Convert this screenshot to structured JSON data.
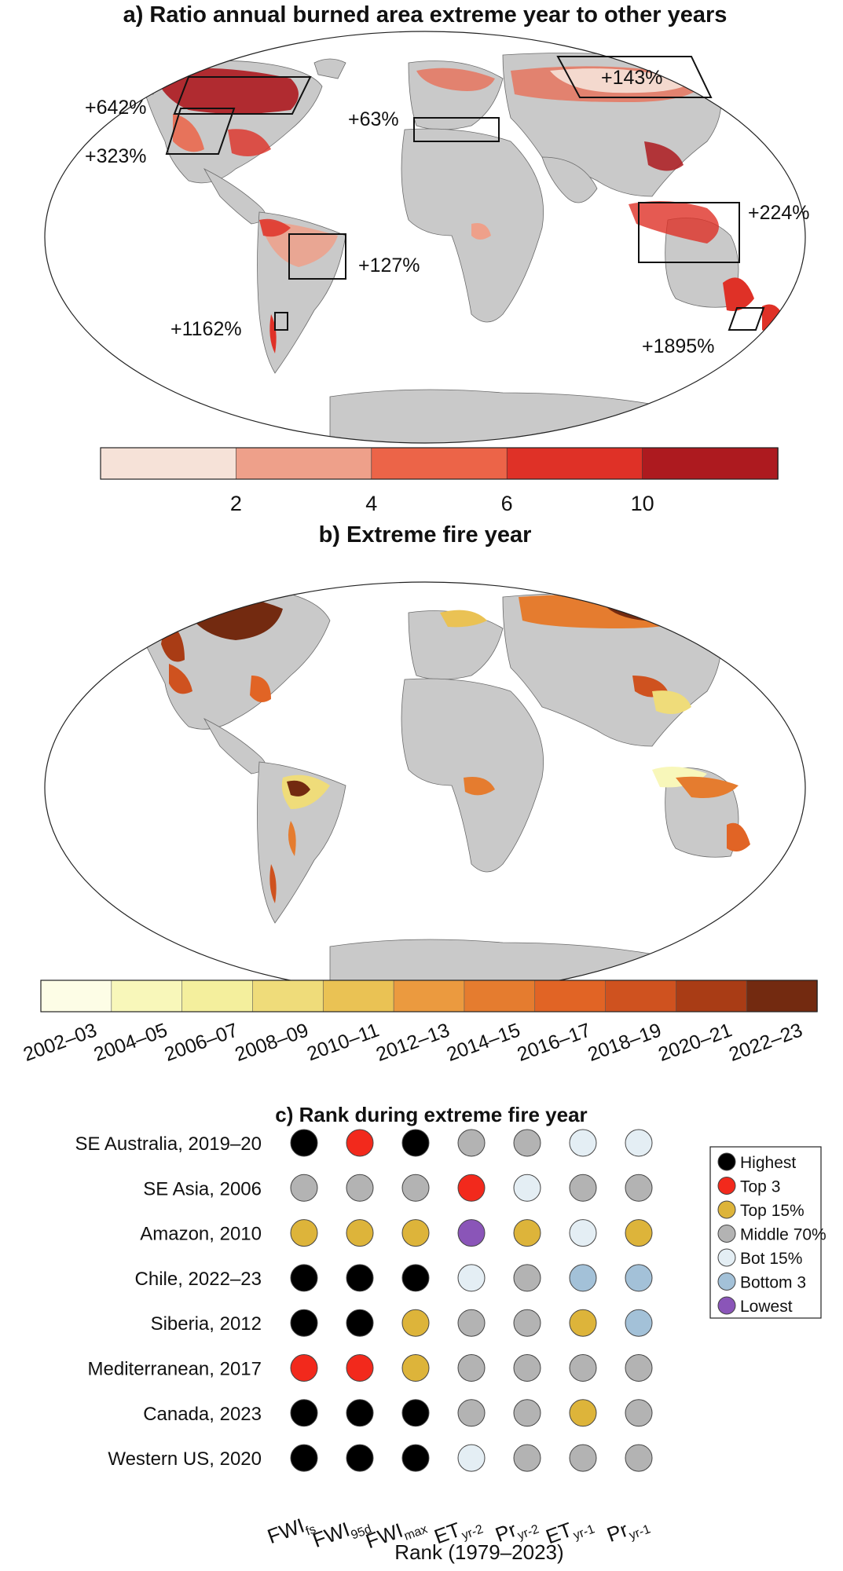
{
  "chart_data": [
    {
      "type": "heatmap",
      "title": "a) Ratio annual burned area extreme year to other years",
      "annotations": [
        "+642%",
        "+323%",
        "+63%",
        "+143%",
        "+224%",
        "+127%",
        "+1162%",
        "+1895%"
      ],
      "colorbar": {
        "ticks": [
          "2",
          "4",
          "6",
          "10"
        ],
        "colors": [
          "#f6e2d8",
          "#eea08a",
          "#ec6448",
          "#df3127",
          "#ad1a1f"
        ]
      }
    },
    {
      "type": "heatmap",
      "title": "b) Extreme fire year",
      "colorbar": {
        "ticks": [
          "2002–03",
          "2004–05",
          "2006–07",
          "2008–09",
          "2010–11",
          "2012–13",
          "2014–15",
          "2016–17",
          "2018–19",
          "2020–21",
          "2022–23"
        ],
        "colors": [
          "#fdfde6",
          "#f8f7ba",
          "#f4ef9d",
          "#efdc7a",
          "#eac254",
          "#eb9a3f",
          "#e57c2f",
          "#e16425",
          "#cf521f",
          "#a93c15",
          "#732a10"
        ]
      }
    },
    {
      "type": "table",
      "title": "c) Rank during extreme fire year",
      "xlabel": "Rank (1979–2023)",
      "columns": [
        {
          "base": "FWI",
          "sub": "fs"
        },
        {
          "base": "FWI",
          "sub": "95d"
        },
        {
          "base": "FWI",
          "sub": "max"
        },
        {
          "base": "ET",
          "sub": "yr-2"
        },
        {
          "base": "Pr",
          "sub": "yr-2"
        },
        {
          "base": "ET",
          "sub": "yr-1"
        },
        {
          "base": "Pr",
          "sub": "yr-1"
        }
      ],
      "rows": [
        {
          "label": "SE Australia, 2019–20",
          "ranks": [
            "Highest",
            "Top 3",
            "Highest",
            "Middle 70%",
            "Middle 70%",
            "Bot 15%",
            "Bot 15%"
          ]
        },
        {
          "label": "SE Asia, 2006",
          "ranks": [
            "Middle 70%",
            "Middle 70%",
            "Middle 70%",
            "Top 3",
            "Bot 15%",
            "Middle 70%",
            "Middle 70%"
          ]
        },
        {
          "label": "Amazon, 2010",
          "ranks": [
            "Top 15%",
            "Top 15%",
            "Top 15%",
            "Lowest",
            "Top 15%",
            "Bot 15%",
            "Top 15%"
          ]
        },
        {
          "label": "Chile, 2022–23",
          "ranks": [
            "Highest",
            "Highest",
            "Highest",
            "Bot 15%",
            "Middle 70%",
            "Bottom 3",
            "Bottom 3"
          ]
        },
        {
          "label": "Siberia, 2012",
          "ranks": [
            "Highest",
            "Highest",
            "Top 15%",
            "Middle 70%",
            "Middle 70%",
            "Top 15%",
            "Bottom 3"
          ]
        },
        {
          "label": "Mediterranean, 2017",
          "ranks": [
            "Top 3",
            "Top 3",
            "Top 15%",
            "Middle 70%",
            "Middle 70%",
            "Middle 70%",
            "Middle 70%"
          ]
        },
        {
          "label": "Canada, 2023",
          "ranks": [
            "Highest",
            "Highest",
            "Highest",
            "Middle 70%",
            "Middle 70%",
            "Top 15%",
            "Middle 70%"
          ]
        },
        {
          "label": "Western US, 2020",
          "ranks": [
            "Highest",
            "Highest",
            "Highest",
            "Bot 15%",
            "Middle 70%",
            "Middle 70%",
            "Middle 70%"
          ]
        }
      ],
      "legend": [
        {
          "label": "Highest",
          "color": "#000000"
        },
        {
          "label": "Top 3",
          "color": "#f2291c"
        },
        {
          "label": "Top 15%",
          "color": "#ddb43a"
        },
        {
          "label": "Middle 70%",
          "color": "#b3b3b3"
        },
        {
          "label": "Bot 15%",
          "color": "#e4eef4"
        },
        {
          "label": "Bottom 3",
          "color": "#a3c1d8"
        },
        {
          "label": "Lowest",
          "color": "#8a55b8"
        }
      ]
    }
  ]
}
